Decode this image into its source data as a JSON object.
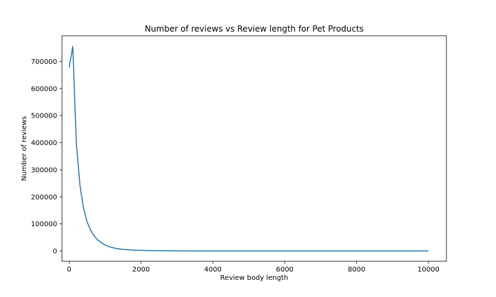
{
  "chart_data": {
    "type": "line",
    "title": "Number of reviews vs Review length for Pet Products",
    "xlabel": "Review body length",
    "ylabel": "Number of reviews",
    "xlim": [
      -200,
      10500
    ],
    "ylim": [
      -38000,
      795000
    ],
    "x_ticks": [
      0,
      2000,
      4000,
      6000,
      8000,
      10000
    ],
    "y_ticks": [
      0,
      100000,
      200000,
      300000,
      400000,
      500000,
      600000,
      700000
    ],
    "grid": false,
    "legend": "none",
    "series": [
      {
        "color": "#1f77b4",
        "x": [
          0,
          100,
          200,
          300,
          400,
          500,
          600,
          700,
          800,
          900,
          1000,
          1100,
          1200,
          1300,
          1400,
          1500,
          1600,
          1700,
          1800,
          1900,
          2000,
          2200,
          2400,
          2600,
          2800,
          3000,
          3500,
          4000,
          4500,
          5000,
          5500,
          6000,
          6500,
          7000,
          7500,
          8000,
          8500,
          9000,
          9500,
          10000
        ],
        "y": [
          678000,
          755000,
          395000,
          243000,
          157000,
          107000,
          76000,
          55000,
          40000,
          30000,
          22000,
          16500,
          12500,
          9500,
          7500,
          6000,
          4800,
          3900,
          3200,
          2600,
          2100,
          1500,
          1100,
          800,
          600,
          450,
          250,
          150,
          100,
          70,
          50,
          40,
          30,
          25,
          20,
          15,
          12,
          10,
          8,
          5
        ]
      }
    ]
  }
}
